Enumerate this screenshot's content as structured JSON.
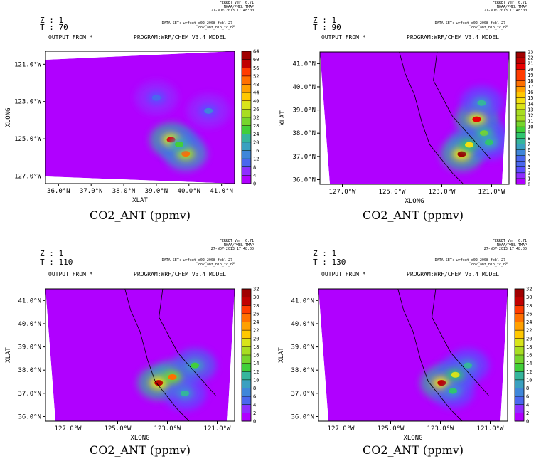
{
  "colorbar_colors": [
    "#b000ff",
    "#8f2dff",
    "#5b4dff",
    "#4a67ee",
    "#3f86d9",
    "#3aa0c0",
    "#35b59c",
    "#30c56f",
    "#41cf3a",
    "#76d52d",
    "#a8dd22",
    "#d8e41a",
    "#f2e010",
    "#ffc800",
    "#ffa000",
    "#ff7000",
    "#ff3c00",
    "#e80000",
    "#c00000",
    "#a00000"
  ],
  "panels": [
    {
      "z_label": "Z : 1",
      "t_label": "T : 70",
      "output_label": "OUTPUT FROM *",
      "program_label": "PROGRAM:WRF/CHEM V3.4 MODEL",
      "dataset_line1": "DATA SET: wrfout_d02_2008-febl-27_",
      "dataset_line2": "co2_ant_bio_fc_bc",
      "ferret_lines": [
        "FERRET Ver. 6.71",
        "NOAA/PMEL TMAP",
        "27-NOV-2013 17:48:00"
      ],
      "variable_title": "CO2_ANT (ppmv)",
      "chart_data": {
        "type": "heatmap",
        "xlabel": "XLAT",
        "ylabel": "XLONG",
        "x_ticks": [
          "36.0°N",
          "37.0°N",
          "38.0°N",
          "39.0°N",
          "40.0°N",
          "41.0°N"
        ],
        "x_range": [
          35.6,
          41.4
        ],
        "y_ticks": [
          "121.0°W",
          "123.0°W",
          "125.0°W",
          "127.0°W"
        ],
        "y_range": [
          -127.4,
          -120.3
        ],
        "colorbar_ticks": [
          "0",
          "4",
          "8",
          "12",
          "16",
          "20",
          "24",
          "28",
          "32",
          "36",
          "40",
          "44",
          "48",
          "52",
          "56",
          "60",
          "64"
        ],
        "colorbar_range": [
          0,
          64
        ],
        "hotspots": [
          {
            "x": 39.45,
            "y": -125.05,
            "value": 55
          },
          {
            "x": 39.9,
            "y": -125.8,
            "value": 50
          },
          {
            "x": 39.7,
            "y": -125.3,
            "value": 28
          },
          {
            "x": 40.6,
            "y": -123.5,
            "value": 14
          },
          {
            "x": 39.0,
            "y": -122.8,
            "value": 12
          }
        ]
      }
    },
    {
      "z_label": "Z : 1",
      "t_label": "T : 90",
      "output_label": "OUTPUT FROM *",
      "program_label": "PROGRAM:WRF/CHEM V3.4 MODEL",
      "dataset_line1": "DATA SET: wrfout_d02_2008-febl-27_",
      "dataset_line2": "co2_ant_bio_fc_bc",
      "ferret_lines": [
        "FERRET Ver. 6.71",
        "NOAA/PMEL TMAP",
        "27-NOV-2013 17:48:00"
      ],
      "variable_title": "CO2_ANT (ppmv)",
      "chart_data": {
        "type": "heatmap",
        "xlabel": "XLONG",
        "ylabel": "XLAT",
        "x_ticks": [
          "127.0°W",
          "125.0°W",
          "123.0°W",
          "121.0°W"
        ],
        "x_range": [
          -127.9,
          -120.3
        ],
        "y_ticks": [
          "41.0°N",
          "40.0°N",
          "39.0°N",
          "38.0°N",
          "37.0°N",
          "36.0°N"
        ],
        "y_range": [
          35.8,
          41.5
        ],
        "colorbar_ticks": [
          "0",
          "1",
          "2",
          "3",
          "4",
          "5",
          "6",
          "7",
          "8",
          "9",
          "10",
          "11",
          "12",
          "13",
          "14",
          "15",
          "16",
          "17",
          "18",
          "19",
          "20",
          "21",
          "22",
          "23"
        ],
        "colorbar_range": [
          0,
          23
        ],
        "hotspots": [
          {
            "x": -122.2,
            "y": 37.1,
            "value": 22
          },
          {
            "x": -121.6,
            "y": 38.6,
            "value": 20
          },
          {
            "x": -121.9,
            "y": 37.5,
            "value": 14
          },
          {
            "x": -121.3,
            "y": 38.0,
            "value": 11
          },
          {
            "x": -121.1,
            "y": 37.6,
            "value": 9
          },
          {
            "x": -121.4,
            "y": 39.3,
            "value": 8
          }
        ]
      }
    },
    {
      "z_label": "Z : 1",
      "t_label": "T : 110",
      "output_label": "OUTPUT FROM *",
      "program_label": "PROGRAM:WRF/CHEM V3.4 MODEL",
      "dataset_line1": "DATA SET: wrfout_d02_2008-febl-27_",
      "dataset_line2": "co2_ant_bio_fc_bc",
      "ferret_lines": [
        "FERRET Ver. 6.71",
        "NOAA/PMEL TMAP",
        "27-NOV-2013 17:48:00"
      ],
      "variable_title": "CO2_ANT (ppmv)",
      "chart_data": {
        "type": "heatmap",
        "xlabel": "XLONG",
        "ylabel": "XLAT",
        "x_ticks": [
          "127.0°W",
          "125.0°W",
          "123.0°W",
          "121.0°W"
        ],
        "x_range": [
          -127.9,
          -120.3
        ],
        "y_ticks": [
          "41.0°N",
          "40.0°N",
          "39.0°N",
          "38.0°N",
          "37.0°N",
          "36.0°N"
        ],
        "y_range": [
          35.8,
          41.5
        ],
        "colorbar_ticks": [
          "0",
          "2",
          "4",
          "6",
          "8",
          "10",
          "12",
          "14",
          "16",
          "18",
          "20",
          "22",
          "24",
          "26",
          "28",
          "30",
          "32"
        ],
        "colorbar_range": [
          0,
          32
        ],
        "hotspots": [
          {
            "x": -123.35,
            "y": 37.45,
            "value": 30
          },
          {
            "x": -122.8,
            "y": 37.7,
            "value": 24
          },
          {
            "x": -121.9,
            "y": 38.2,
            "value": 14
          },
          {
            "x": -122.3,
            "y": 37.0,
            "value": 10
          }
        ]
      }
    },
    {
      "z_label": "Z : 1",
      "t_label": "T : 130",
      "output_label": "OUTPUT FROM *",
      "program_label": "PROGRAM:WRF/CHEM V3.4 MODEL",
      "dataset_line1": "DATA SET: wrfout_d02_2008-febl-27_",
      "dataset_line2": "co2_ant_bio_fc_bc",
      "ferret_lines": [
        "FERRET Ver. 6.71",
        "NOAA/PMEL TMAP",
        "27-NOV-2013 17:48:00"
      ],
      "variable_title": "CO2_ANT (ppmv)",
      "chart_data": {
        "type": "heatmap",
        "xlabel": "XLONG",
        "ylabel": "XLAT",
        "x_ticks": [
          "127.0°W",
          "125.0°W",
          "123.0°W",
          "121.0°W"
        ],
        "x_range": [
          -127.9,
          -120.3
        ],
        "y_ticks": [
          "41.0°N",
          "40.0°N",
          "39.0°N",
          "38.0°N",
          "37.0°N",
          "36.0°N"
        ],
        "y_range": [
          35.8,
          41.5
        ],
        "colorbar_ticks": [
          "0",
          "2",
          "4",
          "6",
          "8",
          "10",
          "12",
          "14",
          "16",
          "18",
          "20",
          "22",
          "24",
          "26",
          "28",
          "30",
          "32"
        ],
        "colorbar_range": [
          0,
          32
        ],
        "hotspots": [
          {
            "x": -122.95,
            "y": 37.45,
            "value": 30
          },
          {
            "x": -122.4,
            "y": 37.8,
            "value": 18
          },
          {
            "x": -121.9,
            "y": 38.2,
            "value": 10
          },
          {
            "x": -122.5,
            "y": 37.1,
            "value": 12
          }
        ]
      }
    }
  ]
}
